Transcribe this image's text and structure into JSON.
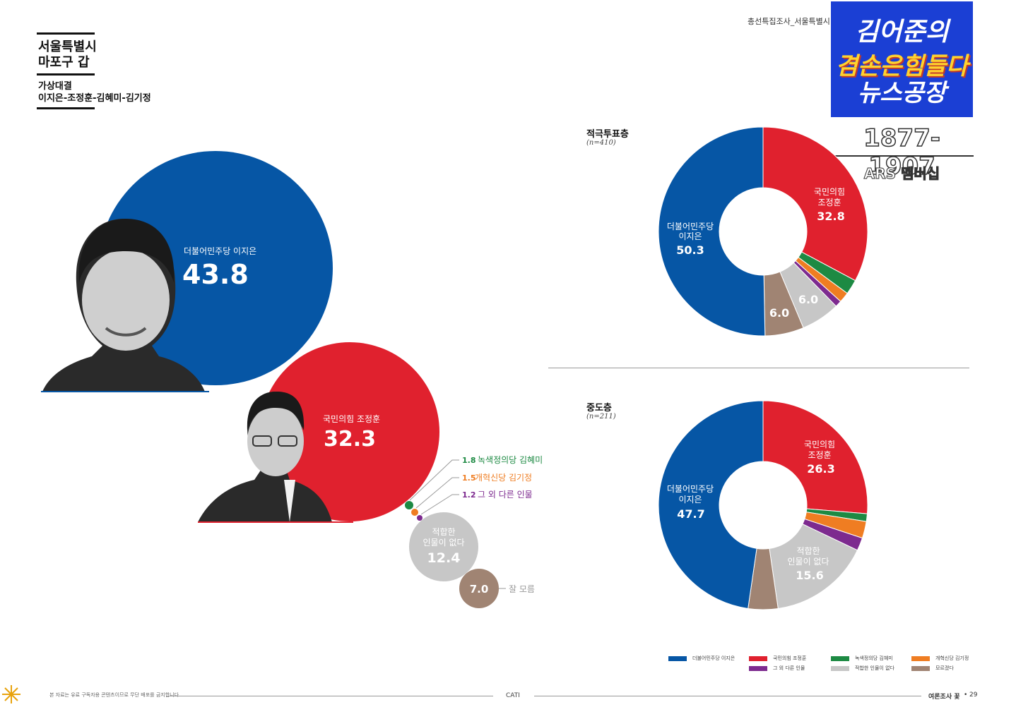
{
  "header": {
    "region": [
      "서울특별시",
      "마포구 갑"
    ],
    "matchup_title": "가상대결",
    "matchup_names": "이지은-조정훈-김혜미-김기정",
    "running_head": "총선특집조사_서울특별시"
  },
  "brand": {
    "line1": "김어준의",
    "line2": "겸손은힘들다",
    "line3": "뉴스공장",
    "years": "1877-1907",
    "ars": "ARS 멤버십"
  },
  "colors": {
    "dem_blue": "#0656a5",
    "ppp_red": "#e0212e",
    "green": "#1d8a43",
    "orange": "#ef7d22",
    "purple": "#7d2a8f",
    "grey": "#c7c7c7",
    "brown": "#a08473"
  },
  "chart_data": [
    {
      "type": "bubble",
      "title": "",
      "series": [
        {
          "name": "더불어민주당 이지은",
          "value": 43.8
        },
        {
          "name": "국민의힘 조정훈",
          "value": 32.3
        },
        {
          "name": "녹색정의당 김혜미",
          "value": 1.8
        },
        {
          "name": "개혁신당 김기정",
          "value": 1.5
        },
        {
          "name": "그 외 다른 인물",
          "value": 1.2
        },
        {
          "name": "적합한 인물이 없다",
          "value": 12.4
        },
        {
          "name": "잘 모름",
          "value": 7.0
        }
      ],
      "labels": {
        "dem": "더불어민주당 이지은",
        "ppp": "국민의힘 조정훈",
        "green": "녹색정의당 김혜미",
        "orange": "개혁신당 김기정",
        "purple": "그 외 다른 인물",
        "none_line1": "적합한",
        "none_line2": "인물이 없다",
        "unknown": "잘 모름"
      }
    },
    {
      "type": "pie",
      "title": "적극투표층",
      "n_label": "(n=410)",
      "slices": [
        {
          "name": "국민의힘 조정훈",
          "value": 32.8
        },
        {
          "name": "녹색정의당 김혜미",
          "value": 2.3
        },
        {
          "name": "개혁신당 김기정",
          "value": 1.6
        },
        {
          "name": "그 외 다른 인물",
          "value": 1.0
        },
        {
          "name": "적합한 인물이 없다",
          "value": 6.0
        },
        {
          "name": "잘 모름",
          "value": 6.0
        },
        {
          "name": "더불어민주당 이지은",
          "value": 50.3
        }
      ],
      "labels": {
        "ppp_line1": "국민의힘",
        "ppp_line2": "조정훈",
        "ppp_value": "32.8",
        "dem_line1": "더불어민주당",
        "dem_line2": "이지은",
        "dem_value": "50.3",
        "grey_value": "6.0",
        "brown_value": "6.0"
      }
    },
    {
      "type": "pie",
      "title": "중도층",
      "n_label": "(n=211)",
      "slices": [
        {
          "name": "국민의힘 조정훈",
          "value": 26.3
        },
        {
          "name": "녹색정의당 김혜미",
          "value": 1.2
        },
        {
          "name": "개혁신당 김기정",
          "value": 2.6
        },
        {
          "name": "그 외 다른 인물",
          "value": 2.0
        },
        {
          "name": "적합한 인물이 없다",
          "value": 15.6
        },
        {
          "name": "잘 모름",
          "value": 4.6
        },
        {
          "name": "더불어민주당 이지은",
          "value": 47.7
        }
      ],
      "labels": {
        "ppp_line1": "국민의힘",
        "ppp_line2": "조정훈",
        "ppp_value": "26.3",
        "dem_line1": "더불어민주당",
        "dem_line2": "이지은",
        "dem_value": "47.7",
        "none_line1": "적합한",
        "none_line2": "인물이 없다",
        "none_value": "15.6"
      }
    }
  ],
  "legend": [
    {
      "label": "더불어민주당 이지은",
      "color": "#0656a5"
    },
    {
      "label": "국민의힘 조정훈",
      "color": "#e0212e"
    },
    {
      "label": "녹색정의당 김혜미",
      "color": "#1d8a43"
    },
    {
      "label": "개혁신당 김기정",
      "color": "#ef7d22"
    },
    {
      "label": "그 외 다른 인물",
      "color": "#7d2a8f"
    },
    {
      "label": "적합한 인물이 없다",
      "color": "#c7c7c7"
    },
    {
      "label": "모르겠다",
      "color": "#a08473"
    }
  ],
  "footer": {
    "disclaimer": "본 자료는 유료 구독자용 콘텐츠이므로 무단 배포를 금지합니다",
    "method": "CATI",
    "publication": "여론조사 꽃",
    "page": "29"
  }
}
